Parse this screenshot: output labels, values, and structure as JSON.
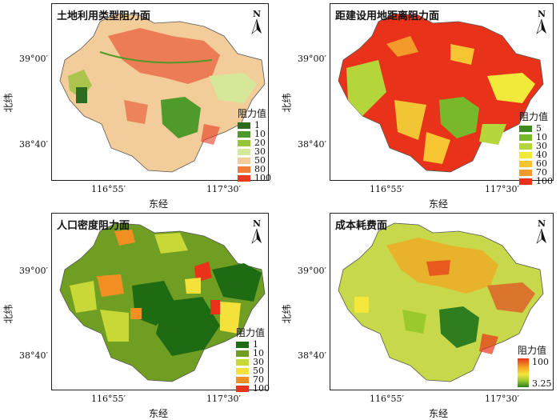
{
  "axes": {
    "x_ticks": [
      "116°55′",
      "117°30′"
    ],
    "y_ticks": [
      "39°00′",
      "38°40′"
    ],
    "x_name": "东经",
    "y_name": "北纬"
  },
  "north_label": "N",
  "panels": [
    {
      "title": "土地利用类型阻力面",
      "legend_title": "阻力值",
      "legend": [
        {
          "label": "1",
          "color": "#2f6b1e"
        },
        {
          "label": "10",
          "color": "#4f9a2a"
        },
        {
          "label": "20",
          "color": "#98c23a"
        },
        {
          "label": "30",
          "color": "#d5e89a"
        },
        {
          "label": "50",
          "color": "#f2cc99"
        },
        {
          "label": "80",
          "color": "#f07d3a"
        },
        {
          "label": "100",
          "color": "#e83a1e"
        }
      ]
    },
    {
      "title": "距建设用地距离阻力面",
      "legend_title": "阻力值",
      "legend": [
        {
          "label": "5",
          "color": "#3f8a1f"
        },
        {
          "label": "10",
          "color": "#78b82a"
        },
        {
          "label": "30",
          "color": "#b4d63a"
        },
        {
          "label": "40",
          "color": "#f2ea3a"
        },
        {
          "label": "60",
          "color": "#f6c531"
        },
        {
          "label": "70",
          "color": "#f29a2a"
        },
        {
          "label": "100",
          "color": "#e8331a"
        }
      ]
    },
    {
      "title": "人口密度阻力面",
      "legend_title": "阻力值",
      "legend": [
        {
          "label": "1",
          "color": "#1f6b14"
        },
        {
          "label": "10",
          "color": "#6f9e22"
        },
        {
          "label": "30",
          "color": "#c8d836"
        },
        {
          "label": "50",
          "color": "#f4e13a"
        },
        {
          "label": "70",
          "color": "#f28f23"
        },
        {
          "label": "100",
          "color": "#e8331a"
        }
      ]
    },
    {
      "title": "成本耗费面",
      "legend_title": "阻力值",
      "gradient_max": "100",
      "gradient_min": "3.25"
    }
  ]
}
